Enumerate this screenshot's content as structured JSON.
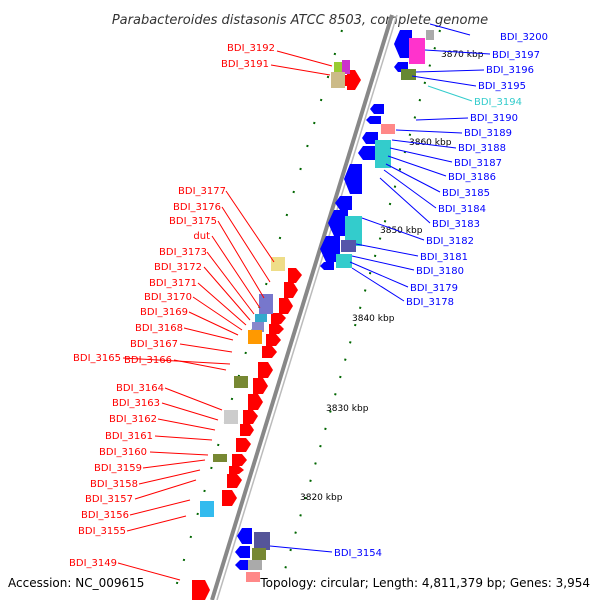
{
  "title": "Parabacteroides distasonis ATCC 8503, complete genome",
  "accession_text": "Accession: NC_009615",
  "summary_text": "Topology: circular; Length: 4,811,379 bp; Genes: 3,954",
  "colors": {
    "forward": "#ff0000",
    "reverse": "#0000ff",
    "highlight": "#33cccc",
    "backbone": "#888888",
    "tick": "#006600"
  },
  "scale_labels": [
    "3820 kbp",
    "3830 kbp",
    "3840 kbp",
    "3850 kbp",
    "3860 kbp",
    "3870 kbp"
  ],
  "left_labels": [
    "BDI_3192",
    "BDI_3191",
    "BDI_3177",
    "BDI_3176",
    "BDI_3175",
    "dut",
    "BDI_3173",
    "BDI_3172",
    "BDI_3171",
    "BDI_3170",
    "BDI_3169",
    "BDI_3168",
    "BDI_3167",
    "BDI_3165",
    "BDI_3166",
    "BDI_3164",
    "BDI_3163",
    "BDI_3162",
    "BDI_3161",
    "BDI_3160",
    "BDI_3159",
    "BDI_3158",
    "BDI_3157",
    "BDI_3156",
    "BDI_3155",
    "BDI_3149"
  ],
  "right_labels": [
    "BDI_3200",
    "BDI_3197",
    "BDI_3196",
    "BDI_3195",
    "BDI_3194",
    "BDI_3190",
    "BDI_3189",
    "BDI_3188",
    "BDI_3187",
    "BDI_3186",
    "BDI_3185",
    "BDI_3184",
    "BDI_3183",
    "BDI_3182",
    "BDI_3181",
    "BDI_3180",
    "BDI_3179",
    "BDI_3178",
    "BDI_3154"
  ]
}
